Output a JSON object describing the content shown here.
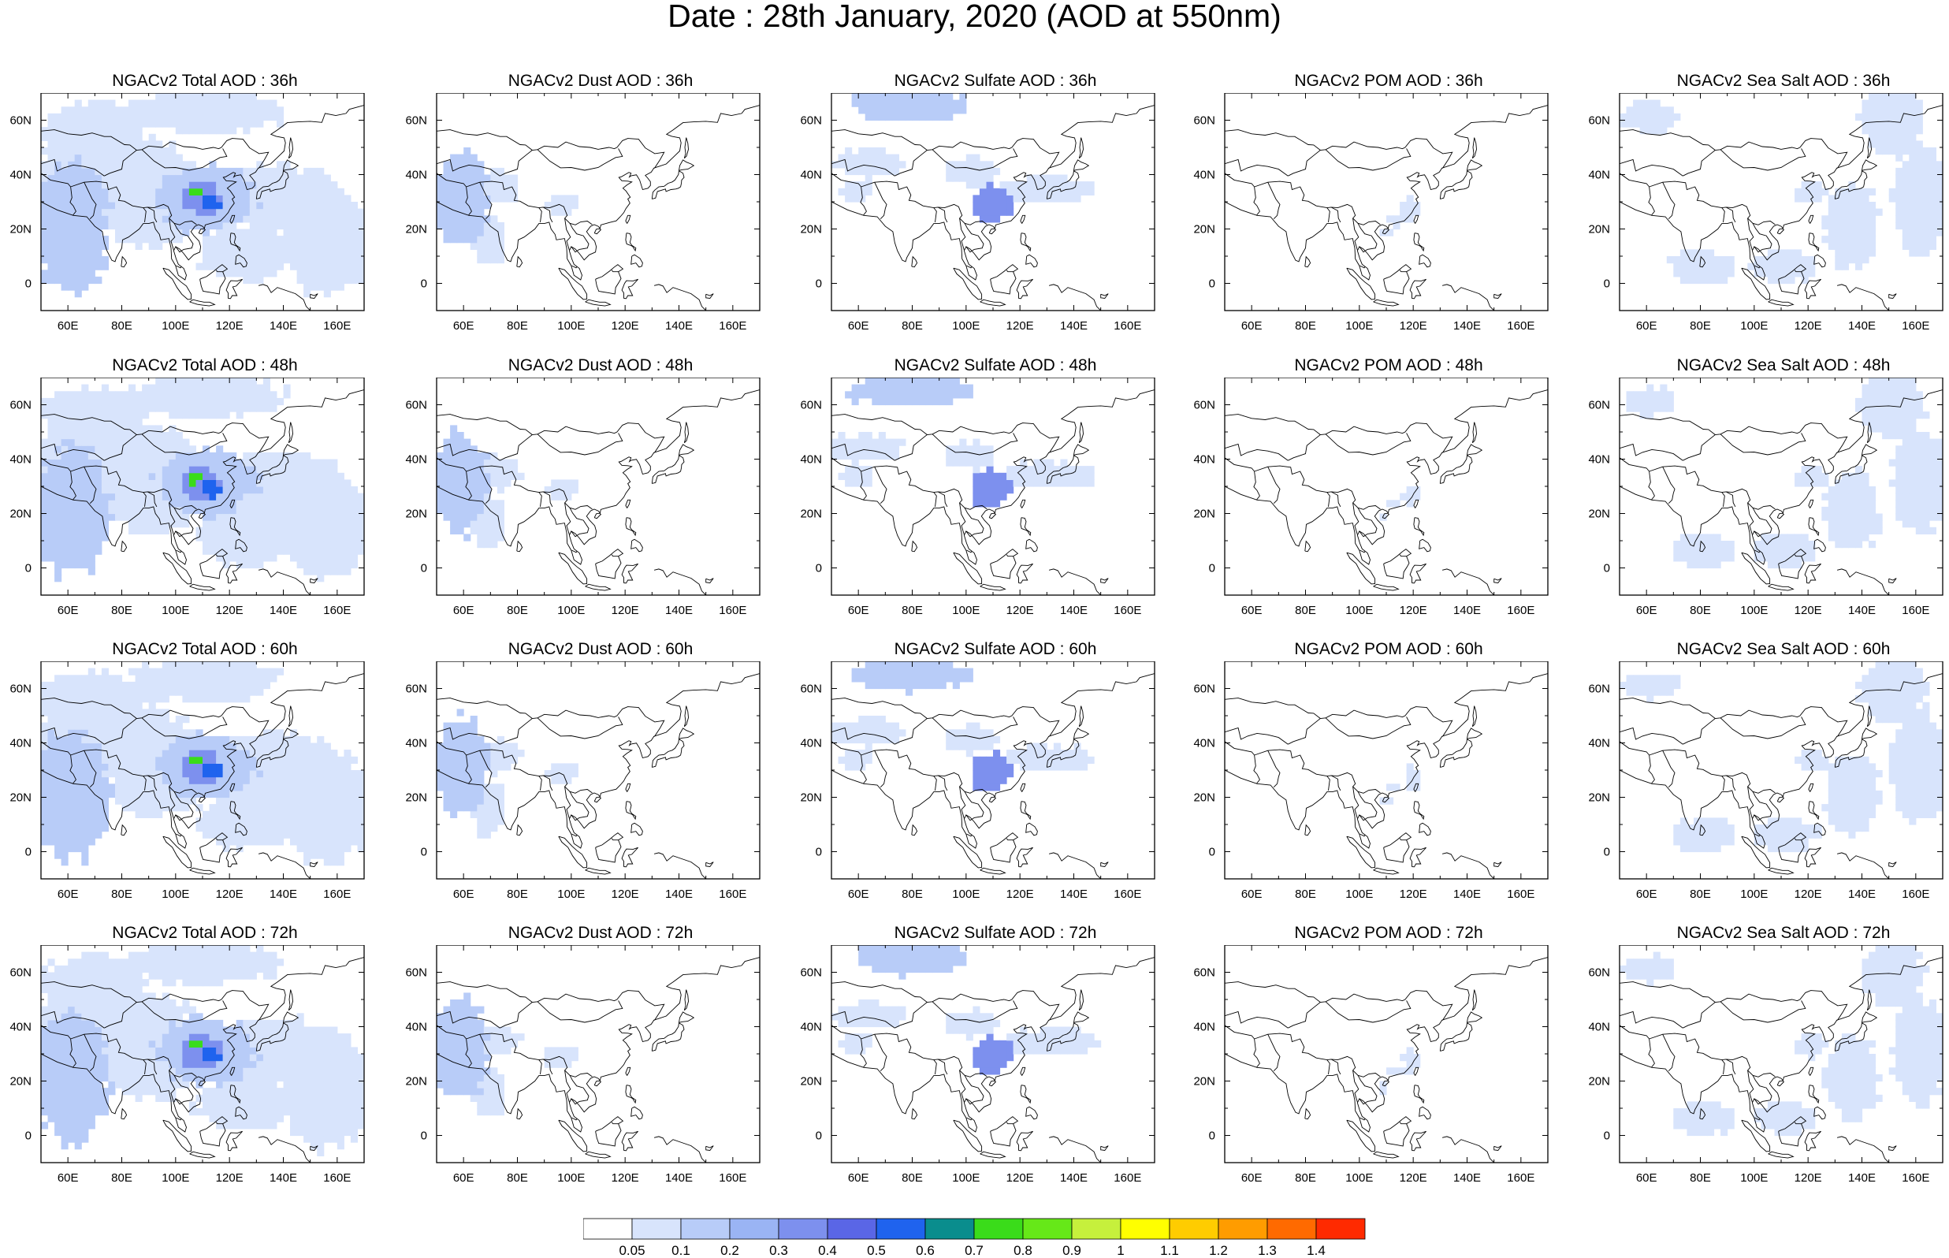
{
  "title": "Date : 28th January, 2020 (AOD at 550nm)",
  "map": {
    "lon_range": [
      50,
      170
    ],
    "lat_range": [
      -10,
      70
    ],
    "x_ticks": [
      "60E",
      "80E",
      "100E",
      "120E",
      "140E",
      "160E"
    ],
    "y_ticks": [
      "60N",
      "40N",
      "20N",
      "0"
    ]
  },
  "panels": [
    {
      "title": "NGACv2 Total AOD : 36h",
      "species": "total",
      "hour": "36h"
    },
    {
      "title": "NGACv2 Dust AOD : 36h",
      "species": "dust",
      "hour": "36h"
    },
    {
      "title": "NGACv2 Sulfate AOD : 36h",
      "species": "sulfate",
      "hour": "36h"
    },
    {
      "title": "NGACv2 POM AOD : 36h",
      "species": "pom",
      "hour": "36h"
    },
    {
      "title": "NGACv2 Sea Salt AOD : 36h",
      "species": "seasalt",
      "hour": "36h"
    },
    {
      "title": "NGACv2 Total AOD : 48h",
      "species": "total",
      "hour": "48h"
    },
    {
      "title": "NGACv2 Dust AOD : 48h",
      "species": "dust",
      "hour": "48h"
    },
    {
      "title": "NGACv2 Sulfate AOD : 48h",
      "species": "sulfate",
      "hour": "48h"
    },
    {
      "title": "NGACv2 POM AOD : 48h",
      "species": "pom",
      "hour": "48h"
    },
    {
      "title": "NGACv2 Sea Salt AOD : 48h",
      "species": "seasalt",
      "hour": "48h"
    },
    {
      "title": "NGACv2 Total AOD : 60h",
      "species": "total",
      "hour": "60h"
    },
    {
      "title": "NGACv2 Dust AOD : 60h",
      "species": "dust",
      "hour": "60h"
    },
    {
      "title": "NGACv2 Sulfate AOD : 60h",
      "species": "sulfate",
      "hour": "60h"
    },
    {
      "title": "NGACv2 POM AOD : 60h",
      "species": "pom",
      "hour": "60h"
    },
    {
      "title": "NGACv2 Sea Salt AOD : 60h",
      "species": "seasalt",
      "hour": "60h"
    },
    {
      "title": "NGACv2 Total AOD : 72h",
      "species": "total",
      "hour": "72h"
    },
    {
      "title": "NGACv2 Dust AOD : 72h",
      "species": "dust",
      "hour": "72h"
    },
    {
      "title": "NGACv2 Sulfate AOD : 72h",
      "species": "sulfate",
      "hour": "72h"
    },
    {
      "title": "NGACv2 POM AOD : 72h",
      "species": "pom",
      "hour": "72h"
    },
    {
      "title": "NGACv2 Sea Salt  AOD : 72h",
      "species": "seasalt",
      "hour": "72h"
    }
  ],
  "colorbar": {
    "labels": [
      "0.05",
      "0.1",
      "0.2",
      "0.3",
      "0.4",
      "0.5",
      "0.6",
      "0.7",
      "0.8",
      "0.9",
      "1",
      "1.1",
      "1.2",
      "1.3",
      "1.4"
    ],
    "colors": [
      "#ffffff",
      "#d8e4fc",
      "#b8ccf8",
      "#9ab4f4",
      "#7d90ee",
      "#5a66e6",
      "#1f63ee",
      "#0a8d8d",
      "#3adc1a",
      "#66e818",
      "#c6f03c",
      "#ffff00",
      "#ffcc00",
      "#ff9c00",
      "#ff6a00",
      "#ff2a00"
    ]
  }
}
